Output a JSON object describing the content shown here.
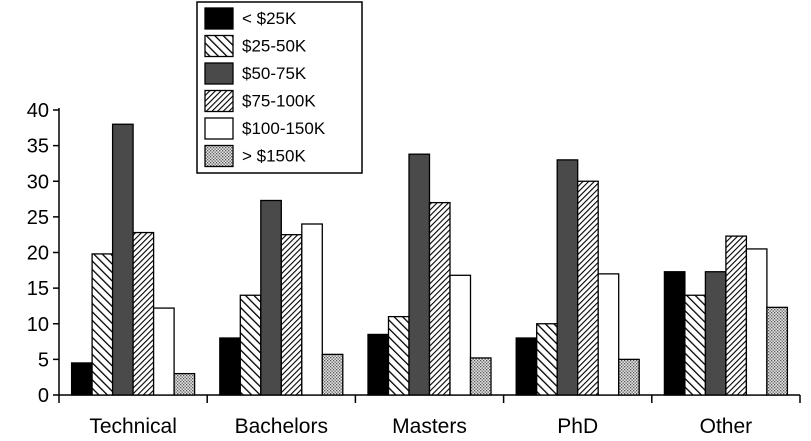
{
  "chart_data": {
    "type": "bar",
    "categories": [
      "Technical",
      "Bachelors",
      "Masters",
      "PhD",
      "Other"
    ],
    "series": [
      {
        "name": "< $25K",
        "values": [
          4.5,
          8,
          8.5,
          8,
          17.3
        ]
      },
      {
        "name": "$25-50K",
        "values": [
          19.8,
          14,
          11,
          10,
          14
        ]
      },
      {
        "name": "$50-75K",
        "values": [
          38,
          27.3,
          33.8,
          33,
          17.3
        ]
      },
      {
        "name": "$75-100K",
        "values": [
          22.8,
          22.5,
          27,
          30,
          22.3
        ]
      },
      {
        "name": "$100-150K",
        "values": [
          12.2,
          24,
          16.8,
          17,
          20.5
        ]
      },
      {
        "name": "> $150K",
        "values": [
          3,
          5.7,
          5.2,
          5,
          12.3
        ]
      }
    ],
    "yticks": [
      0,
      5,
      10,
      15,
      20,
      25,
      30,
      35,
      40
    ],
    "ylim": [
      0,
      40
    ],
    "legend_position": "top-center",
    "grid": false,
    "title": "",
    "xlabel": "",
    "ylabel": "",
    "series_fills": [
      "solid-black",
      "diagonal-hatch",
      "solid-dark-gray",
      "dense-diagonal-hatch",
      "white",
      "dotted-light"
    ]
  }
}
